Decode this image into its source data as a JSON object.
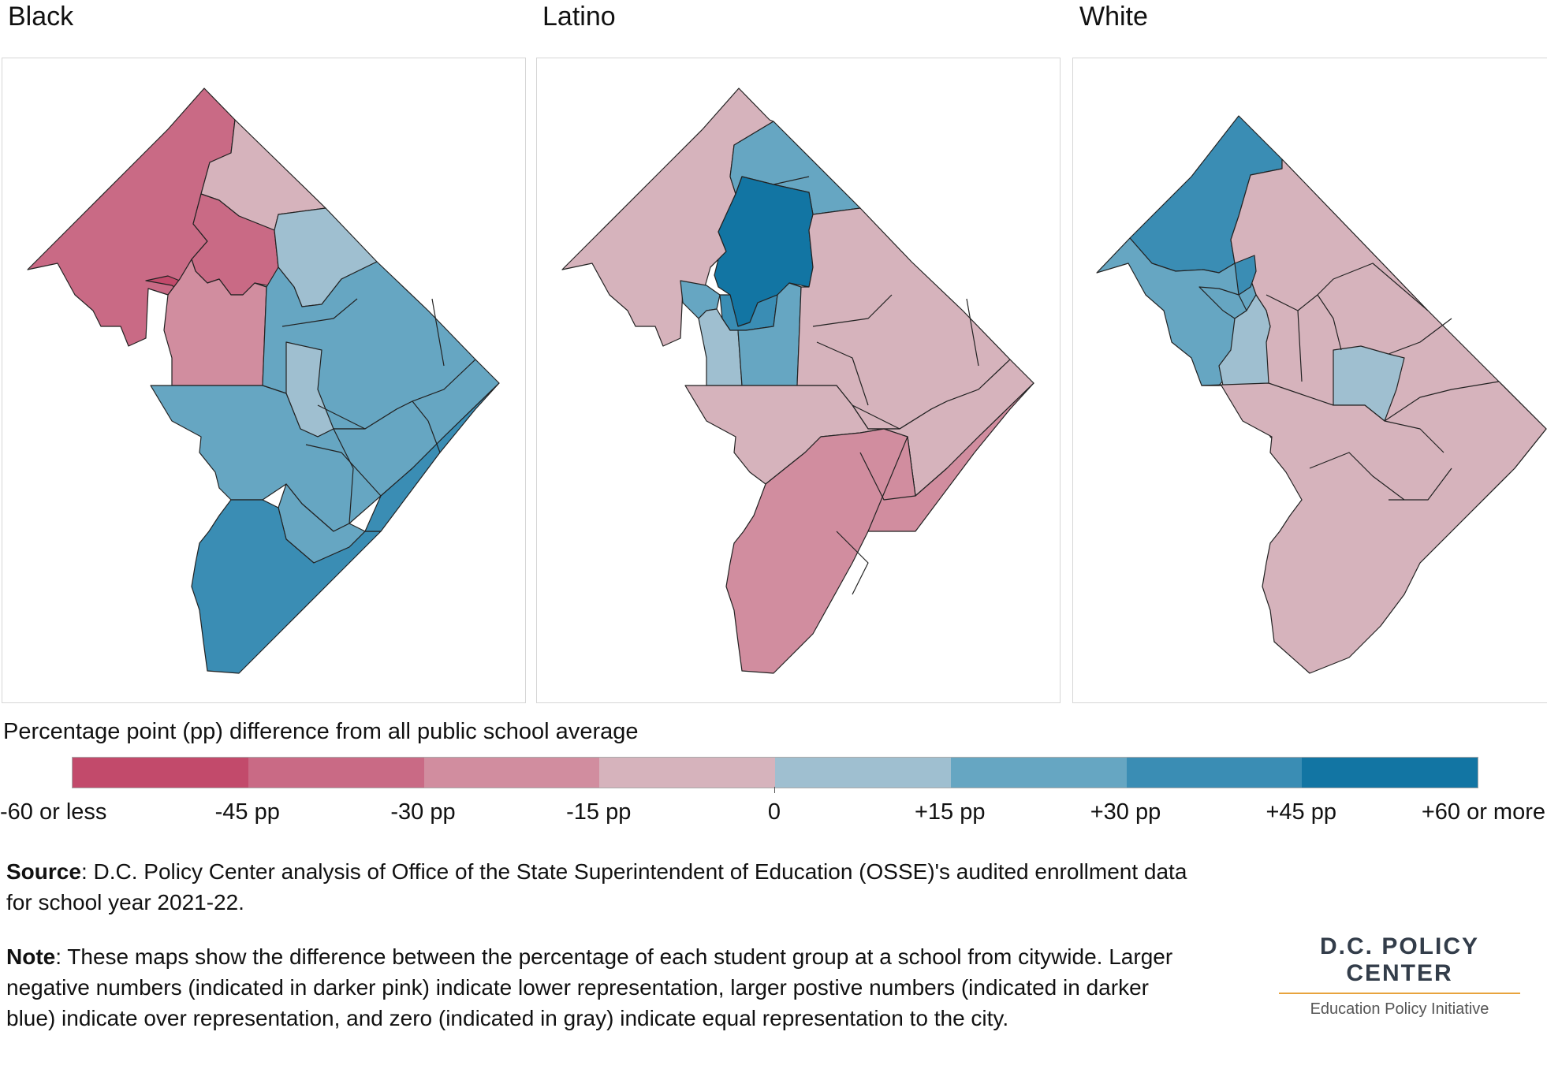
{
  "maps": [
    {
      "title": "Black"
    },
    {
      "title": "Latino"
    },
    {
      "title": "White"
    }
  ],
  "legend": {
    "title": "Percentage point (pp) difference from all public school average",
    "colors": [
      "#c24a6b",
      "#c96a85",
      "#d18d9f",
      "#d6b3bc",
      "#9fbfd0",
      "#66a6c2",
      "#3a8db4",
      "#1275a3"
    ],
    "labels": [
      "-60 or less",
      "-45 pp",
      "-30 pp",
      "-15 pp",
      "0",
      "+15 pp",
      "+30 pp",
      "+45 pp",
      "+60 or more"
    ]
  },
  "source": {
    "label": "Source",
    "text": ": D.C. Policy Center analysis of Office of the State Superintendent of Education (OSSE)'s audited enrollment data for school year 2021-22."
  },
  "note": {
    "label": "Note",
    "text": ": These maps show the difference between the percentage of each student group at a school from citywide. Larger negative numbers (indicated in darker pink) indicate lower representation, larger postive numbers (indicated in darker blue) indicate over representation, and zero (indicated in gray) indicate equal representation to the city."
  },
  "logo": {
    "name": "D.C. POLICY CENTER",
    "subtitle": "Education Policy Initiative"
  }
}
